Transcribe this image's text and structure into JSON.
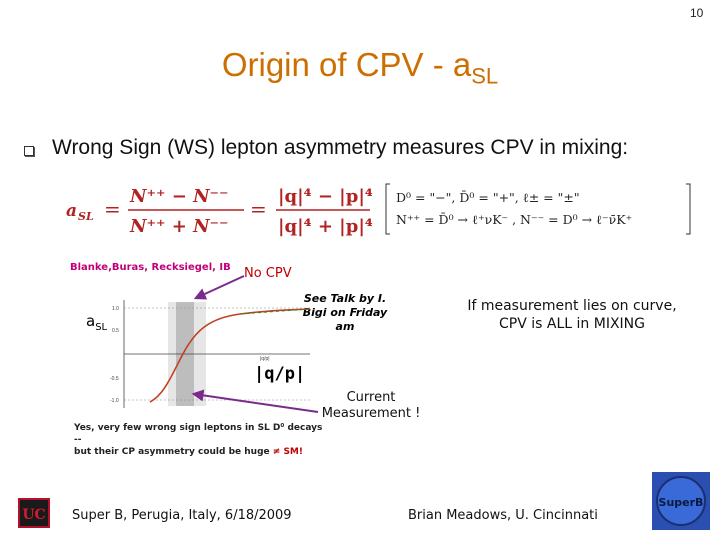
{
  "slide": {
    "number": "10"
  },
  "title": {
    "main": "Origin of CPV  - a",
    "sub": "SL"
  },
  "bullet": {
    "text": "Wrong Sign (WS) lepton asymmetry measures CPV in mixing:"
  },
  "formula": {
    "lhs": "a",
    "lhs_sub": "SL",
    "num1": "N⁺⁺ − N⁻⁻",
    "den1": "N⁺⁺ + N⁻⁻",
    "num2": "|q|⁴ − |p|⁴",
    "den2": "|q|⁴ + |p|⁴",
    "bracket_line1": "D⁰ = \"−\", D̄⁰ = \"+\", ℓ± = \"±\"",
    "bracket_line2": "N⁺⁺ = D̄⁰ → ℓ⁺νK⁻ , N⁻⁻ = D⁰ → ℓ⁻ν̄K⁺"
  },
  "figure": {
    "ref_authors": "Blanke,Buras, Recksiegel, IB",
    "no_cpv_label": "No CPV",
    "see_talk": "See Talk by I. Bigi on Friday am",
    "asl_label": "a",
    "asl_sub": "SL",
    "qp_label": "|q/p|",
    "current_measurement": "Current Measurement !",
    "bottom_note_line1": "Yes, very few wrong sign leptons in SL D⁰ decays --",
    "bottom_note_line2": "but their CP asymmetry could be huge",
    "bottom_note_highlight": "≠ SM!",
    "y_ticks": [
      "1.0",
      "0.5",
      "-0.5",
      "-1.0"
    ],
    "x_tick": "|q/p|",
    "colors": {
      "curve": "#c04020",
      "band": "#b8b8b8",
      "arrow": "#7a2a8a"
    }
  },
  "measurement_note": "If measurement lies on curve, CPV is ALL in MIXING",
  "footer": {
    "left": "Super B, Perugia, Italy, 6/18/2009",
    "right": "Brian Meadows, U. Cincinnati"
  },
  "logos": {
    "left": "UC",
    "right": "SuperB"
  }
}
